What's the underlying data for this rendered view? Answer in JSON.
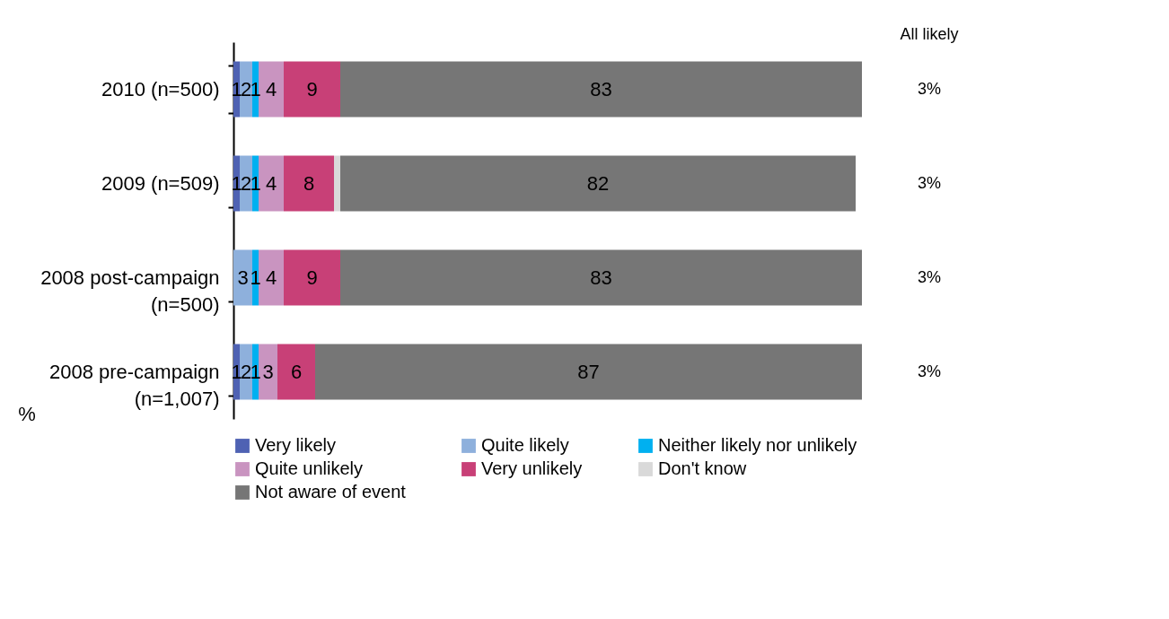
{
  "chart_data": {
    "type": "bar",
    "orientation": "horizontal",
    "stacked": true,
    "categories": [
      "2010 (n=500)",
      "2009 (n=509)",
      "2008 post-campaign (n=500)",
      "2008 pre-campaign (n=1,007)"
    ],
    "series": [
      {
        "name": "Very likely",
        "color": "#4f62b3",
        "values": [
          1,
          1,
          null,
          1
        ],
        "value_labels": [
          "1",
          "1",
          null,
          "1"
        ]
      },
      {
        "name": "Quite likely",
        "color": "#8eb0dc",
        "values": [
          2,
          2,
          3,
          2
        ],
        "value_labels": [
          "2",
          "2",
          "3",
          "2"
        ]
      },
      {
        "name": "Neither likely nor unlikely",
        "color": "#00b0f0",
        "values": [
          1,
          1,
          1,
          1
        ],
        "value_labels": [
          "1",
          "1",
          "1",
          "1"
        ]
      },
      {
        "name": "Quite unlikely",
        "color": "#c994c0",
        "values": [
          4,
          4,
          4,
          3
        ],
        "value_labels": [
          "4",
          "4",
          "4",
          "3"
        ]
      },
      {
        "name": "Very unlikely",
        "color": "#c84077",
        "values": [
          9,
          8,
          9,
          6
        ],
        "value_labels": [
          "9",
          "8",
          "9",
          "6"
        ]
      },
      {
        "name": "Don't know",
        "color": "#d9d9d9",
        "values": [
          null,
          1,
          null,
          null
        ],
        "value_labels": [
          null,
          null,
          null,
          null
        ]
      },
      {
        "name": "Not aware of event",
        "color": "#767676",
        "values": [
          83,
          82,
          83,
          87
        ],
        "value_labels": [
          "83",
          "82",
          "83",
          "87"
        ]
      }
    ],
    "legend": "bottom",
    "annotations": [
      "All likely",
      "3%",
      "3%",
      "3%",
      "3%",
      "%"
    ]
  }
}
